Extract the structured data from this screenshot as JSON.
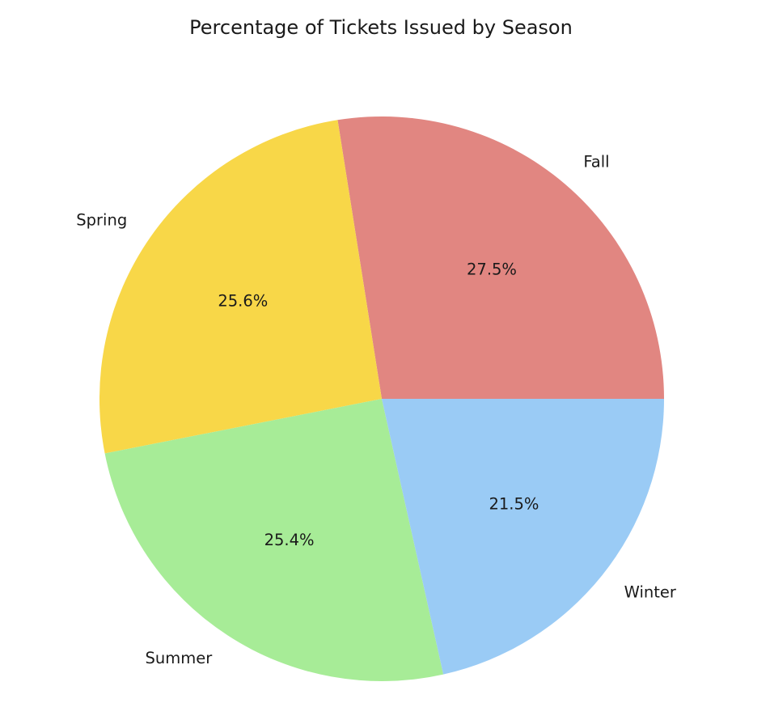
{
  "chart_data": {
    "type": "pie",
    "title": "Percentage of Tickets Issued by Season",
    "categories": [
      "Fall",
      "Spring",
      "Summer",
      "Winter"
    ],
    "values": [
      27.5,
      25.6,
      25.4,
      21.5
    ],
    "value_labels": [
      "27.5%",
      "25.6%",
      "25.4%",
      "21.5%"
    ],
    "colors": [
      "#e18681",
      "#f8d748",
      "#a7ec97",
      "#9acbf5"
    ],
    "start_angle_deg": 0,
    "direction": "counterclockwise",
    "legend": "none"
  }
}
